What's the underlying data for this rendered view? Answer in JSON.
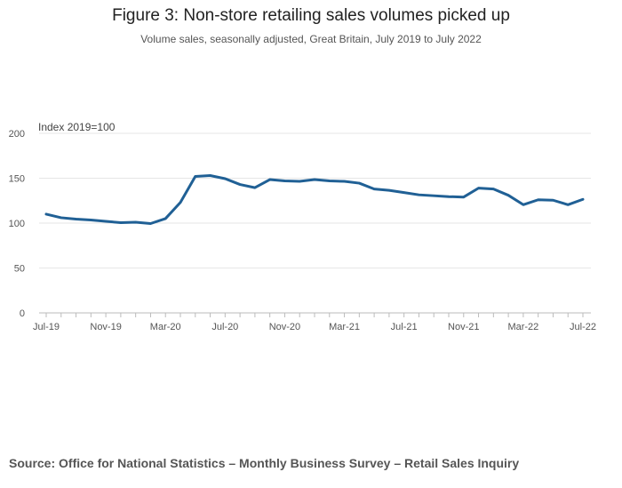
{
  "title": "Figure 3: Non-store retailing sales volumes picked up",
  "subtitle": "Volume sales, seasonally adjusted, Great Britain, July 2019 to July 2022",
  "source": "Source: Office for National Statistics – Monthly Business Survey – Retail Sales Inquiry",
  "colors": {
    "line": "#206095",
    "grid": "#e6e6e6",
    "axis": "#bbbbbb"
  },
  "chart_data": {
    "type": "line",
    "y_unit_label": "Index 2019=100",
    "ylim": [
      0,
      200
    ],
    "y_ticks": [
      0,
      50,
      100,
      150,
      200
    ],
    "grid": true,
    "x_tick_labels": [
      "Jul-19",
      "Nov-19",
      "Mar-20",
      "Jul-20",
      "Nov-20",
      "Mar-21",
      "Jul-21",
      "Nov-21",
      "Mar-22",
      "Jul-22"
    ],
    "x": [
      "Jul-19",
      "Aug-19",
      "Sep-19",
      "Oct-19",
      "Nov-19",
      "Dec-19",
      "Jan-20",
      "Feb-20",
      "Mar-20",
      "Apr-20",
      "May-20",
      "Jun-20",
      "Jul-20",
      "Aug-20",
      "Sep-20",
      "Oct-20",
      "Nov-20",
      "Dec-20",
      "Jan-21",
      "Feb-21",
      "Mar-21",
      "Apr-21",
      "May-21",
      "Jun-21",
      "Jul-21",
      "Aug-21",
      "Sep-21",
      "Oct-21",
      "Nov-21",
      "Dec-21",
      "Jan-22",
      "Feb-22",
      "Mar-22",
      "Apr-22",
      "May-22",
      "Jun-22",
      "Jul-22"
    ],
    "series": [
      {
        "values": [
          110,
          106,
          104.5,
          103.5,
          102,
          100.5,
          101,
          99.5,
          105,
          123,
          152,
          153,
          149.5,
          143,
          139.5,
          148.5,
          147,
          146.5,
          148.5,
          147,
          146.5,
          144.5,
          138,
          136.5,
          134,
          131.5,
          130.5,
          129.5,
          129,
          139,
          138,
          131,
          120.5,
          126,
          125.5,
          120.5,
          126.5
        ]
      }
    ]
  }
}
